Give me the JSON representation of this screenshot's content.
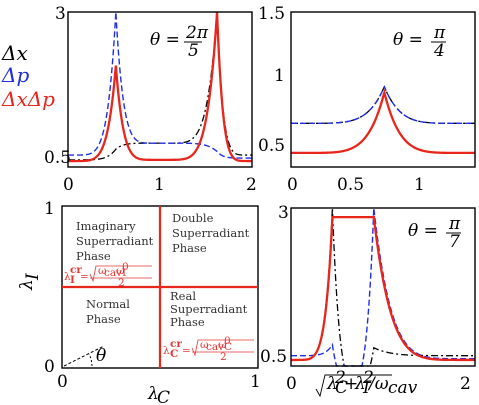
{
  "legend": [
    {
      "label": "Δx",
      "color": "#000000"
    },
    {
      "label": "Δp",
      "color": "#1f2ee6"
    },
    {
      "label": "ΔxΔp",
      "color": "#e8261c"
    }
  ],
  "chart_data": [
    {
      "type": "line",
      "title": "θ = 2π/5",
      "xlim": [
        0,
        2
      ],
      "ylim": [
        0.4,
        3
      ],
      "xticks": [
        "0",
        "1",
        "2"
      ],
      "yticks": [
        "0.5",
        "3"
      ],
      "peaks": [
        0.52,
        1.62
      ],
      "series": [
        {
          "name": "Δx",
          "style": "dash-dot",
          "values": {
            "x": [
              0,
              0.52,
              1.0,
              1.62,
              2
            ],
            "y": [
              0.52,
              0.7,
              0.8,
              3.0,
              0.6
            ]
          }
        },
        {
          "name": "Δp",
          "style": "dashed",
          "values": {
            "x": [
              0,
              0.52,
              1.0,
              1.62,
              2
            ],
            "y": [
              0.6,
              3.0,
              0.8,
              0.66,
              0.55
            ]
          }
        },
        {
          "name": "ΔxΔp",
          "style": "solid",
          "values": {
            "x": [
              0,
              0.52,
              1.0,
              1.62,
              2
            ],
            "y": [
              0.5,
              2.1,
              0.52,
              3.0,
              0.5
            ]
          }
        }
      ]
    },
    {
      "type": "line",
      "title": "θ = π/4",
      "xlim": [
        0,
        1.4
      ],
      "ylim": [
        0.4,
        1.5
      ],
      "xticks": [
        "0",
        "0.5",
        "1"
      ],
      "yticks": [
        "0.5",
        "1",
        "1.5"
      ],
      "peaks": [
        0.71
      ],
      "series": [
        {
          "name": "Δx",
          "style": "dash-dot",
          "values": {
            "x": [
              0,
              0.71,
              1.4
            ],
            "y": [
              0.71,
              0.97,
              0.71
            ]
          }
        },
        {
          "name": "Δp",
          "style": "dashed",
          "values": {
            "x": [
              0,
              0.71,
              1.4
            ],
            "y": [
              0.71,
              0.97,
              0.71
            ]
          }
        },
        {
          "name": "ΔxΔp",
          "style": "solid",
          "values": {
            "x": [
              0,
              0.71,
              1.4
            ],
            "y": [
              0.5,
              0.93,
              0.5
            ]
          }
        }
      ]
    },
    {
      "type": "diagram",
      "xlabel": "λ_C",
      "ylabel": "λ_I",
      "xticks": [
        "0",
        "1"
      ],
      "yticks": [
        "0",
        "1"
      ],
      "regions": [
        {
          "lines": [
            "Imaginary",
            "Superradiant",
            "Phase"
          ]
        },
        {
          "lines": [
            "Double",
            "Superradiant",
            "Phase"
          ]
        },
        {
          "lines": [
            "Normal",
            "Phase"
          ]
        },
        {
          "lines": [
            "Real",
            "Superradiant",
            "Phase"
          ]
        }
      ],
      "critical_I": "λ_I^cr = √(ω_cav ω_I^0) / 2",
      "critical_C": "λ_C^cr = √(ω_cav ω_C^0) / 2",
      "angle_label": "θ"
    },
    {
      "type": "line",
      "title": "θ = π/7",
      "xlabel": "√(λ_C² + λ_I²)/ω_cav",
      "xlim": [
        0,
        2
      ],
      "ylim": [
        0.4,
        3
      ],
      "xticks": [
        "0",
        "2"
      ],
      "yticks": [
        "0.5",
        "3"
      ],
      "peaks": [
        0.45,
        0.9
      ],
      "series": [
        {
          "name": "Δx",
          "style": "dash-dot",
          "values": {
            "x": [
              0,
              0.45,
              0.9,
              2
            ],
            "y": [
              0.5,
              3.0,
              0.7,
              0.57
            ]
          }
        },
        {
          "name": "Δp",
          "style": "dashed",
          "values": {
            "x": [
              0,
              0.45,
              0.9,
              2
            ],
            "y": [
              0.57,
              0.75,
              3.0,
              0.52
            ]
          }
        },
        {
          "name": "ΔxΔp",
          "style": "solid",
          "values": {
            "x": [
              0,
              0.45,
              0.9,
              2
            ],
            "y": [
              0.5,
              2.85,
              2.85,
              0.5
            ]
          }
        }
      ]
    }
  ]
}
